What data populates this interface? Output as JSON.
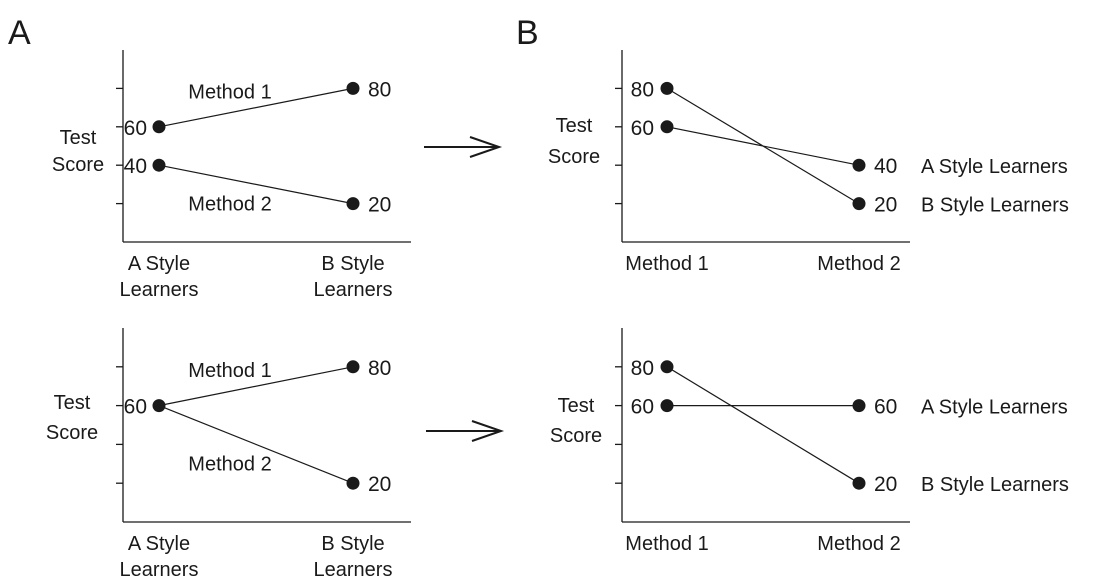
{
  "panel_letters": [
    "A",
    "B"
  ],
  "chart_data": [
    {
      "type": "line",
      "ylabel": "Test Score",
      "x": [
        "A Style Learners",
        "B Style Learners"
      ],
      "series": [
        {
          "name": "Method 1",
          "values": [
            60,
            80
          ]
        },
        {
          "name": "Method 2",
          "values": [
            40,
            20
          ]
        }
      ]
    },
    {
      "type": "line",
      "ylabel": "Test Score",
      "x": [
        "Method 1",
        "Method 2"
      ],
      "series": [
        {
          "name": "A Style Learners",
          "values": [
            60,
            40
          ]
        },
        {
          "name": "B Style Learners",
          "values": [
            80,
            20
          ]
        }
      ]
    },
    {
      "type": "line",
      "ylabel": "Test Score",
      "x": [
        "A Style Learners",
        "B Style Learners"
      ],
      "series": [
        {
          "name": "Method 1",
          "values": [
            60,
            80
          ]
        },
        {
          "name": "Method 2",
          "values": [
            60,
            20
          ]
        }
      ]
    },
    {
      "type": "line",
      "ylabel": "Test Score",
      "x": [
        "Method 1",
        "Method 2"
      ],
      "series": [
        {
          "name": "A Style Learners",
          "values": [
            60,
            60
          ]
        },
        {
          "name": "B Style Learners",
          "values": [
            80,
            20
          ]
        }
      ]
    }
  ]
}
